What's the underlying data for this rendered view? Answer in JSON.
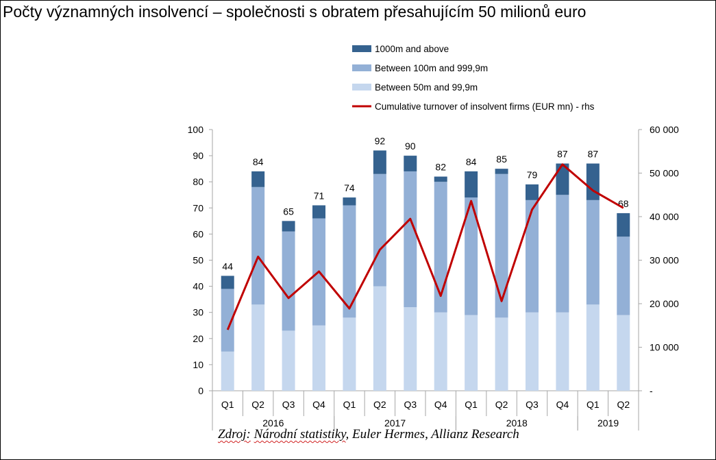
{
  "title": "Počty významných insolvencí – společnosti s obratem přesahujícím 50 milionů euro",
  "source": {
    "label": "Zdroj:",
    "national": "Národní statistiky",
    "rest": ",  Euler Hermes, Allianz Research"
  },
  "colors": {
    "above_1000m": "#35628f",
    "between_100m_999m": "#93b0d6",
    "between_50m_99m": "#c5d7ee",
    "turnover_line": "#c00000"
  },
  "chart_data": {
    "type": "bar",
    "stacked": true,
    "categories": [
      "Q1",
      "Q2",
      "Q3",
      "Q4",
      "Q1",
      "Q2",
      "Q3",
      "Q4",
      "Q1",
      "Q2",
      "Q3",
      "Q4",
      "Q1",
      "Q2"
    ],
    "years": [
      {
        "label": "2016",
        "quarters": 4
      },
      {
        "label": "2017",
        "quarters": 4
      },
      {
        "label": "2018",
        "quarters": 4
      },
      {
        "label": "2019",
        "quarters": 2
      }
    ],
    "series": [
      {
        "name": "Between 50m and 99,9m",
        "values": [
          15,
          33,
          23,
          25,
          28,
          40,
          32,
          30,
          29,
          28,
          30,
          30,
          33,
          29
        ]
      },
      {
        "name": "Between 100m and 999,9m",
        "values": [
          24,
          45,
          38,
          41,
          43,
          43,
          52,
          50,
          45,
          55,
          43,
          45,
          40,
          30
        ]
      },
      {
        "name": "1000m and above",
        "values": [
          5,
          6,
          4,
          5,
          3,
          9,
          6,
          2,
          10,
          2,
          6,
          12,
          14,
          9
        ]
      }
    ],
    "totals": [
      44,
      84,
      65,
      71,
      74,
      92,
      90,
      82,
      84,
      85,
      79,
      87,
      87,
      68
    ],
    "line": {
      "name": "Cumulative turnover of insolvent firms (EUR mn) - rhs",
      "axis": "right",
      "values": [
        14000,
        30800,
        21300,
        27400,
        18900,
        32400,
        39500,
        21800,
        43600,
        20600,
        41600,
        52000,
        46000,
        42000
      ]
    },
    "ylim": [
      0,
      100
    ],
    "yticks": [
      0,
      10,
      20,
      30,
      40,
      50,
      60,
      70,
      80,
      90,
      100
    ],
    "y2lim": [
      0,
      60000
    ],
    "y2ticks": [
      "-",
      "10 000",
      "20 000",
      "30 000",
      "40 000",
      "50 000",
      "60 000"
    ],
    "legend_order": [
      "1000m and above",
      "Between 100m and 999,9m",
      "Between 50m and 99,9m",
      "Cumulative turnover of insolvent firms (EUR mn) - rhs"
    ]
  }
}
